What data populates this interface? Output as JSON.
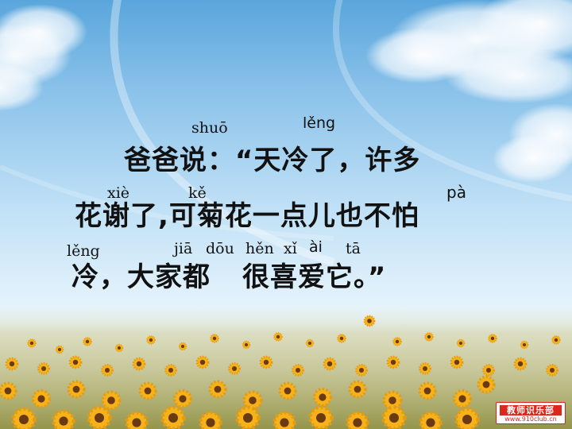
{
  "pinyin": {
    "shuo": "shuō",
    "leng1": "lěng",
    "xie": "xiè",
    "ke": "kě",
    "pa": "pà",
    "leng2": "lěng",
    "jia": "jiā",
    "dou": "dōu",
    "hen": "hěn",
    "xi": "xǐ",
    "ai": "ài",
    "ta": "tā"
  },
  "text": {
    "line1": "爸爸说：“天冷了，许多",
    "line2": "花谢了,可菊花一点儿也不怕",
    "line3a": "冷，大家都",
    "line3b": "很喜爱它。”"
  },
  "logo": {
    "title": "教师识乐部",
    "url": "www.910club.cn"
  },
  "colors": {
    "sky_top": "#5aa6dc",
    "sky_bottom": "#e3f2fb",
    "flower_petal": "#f5b21a",
    "flower_center": "#6b3a12",
    "logo_red": "#d9281e"
  }
}
